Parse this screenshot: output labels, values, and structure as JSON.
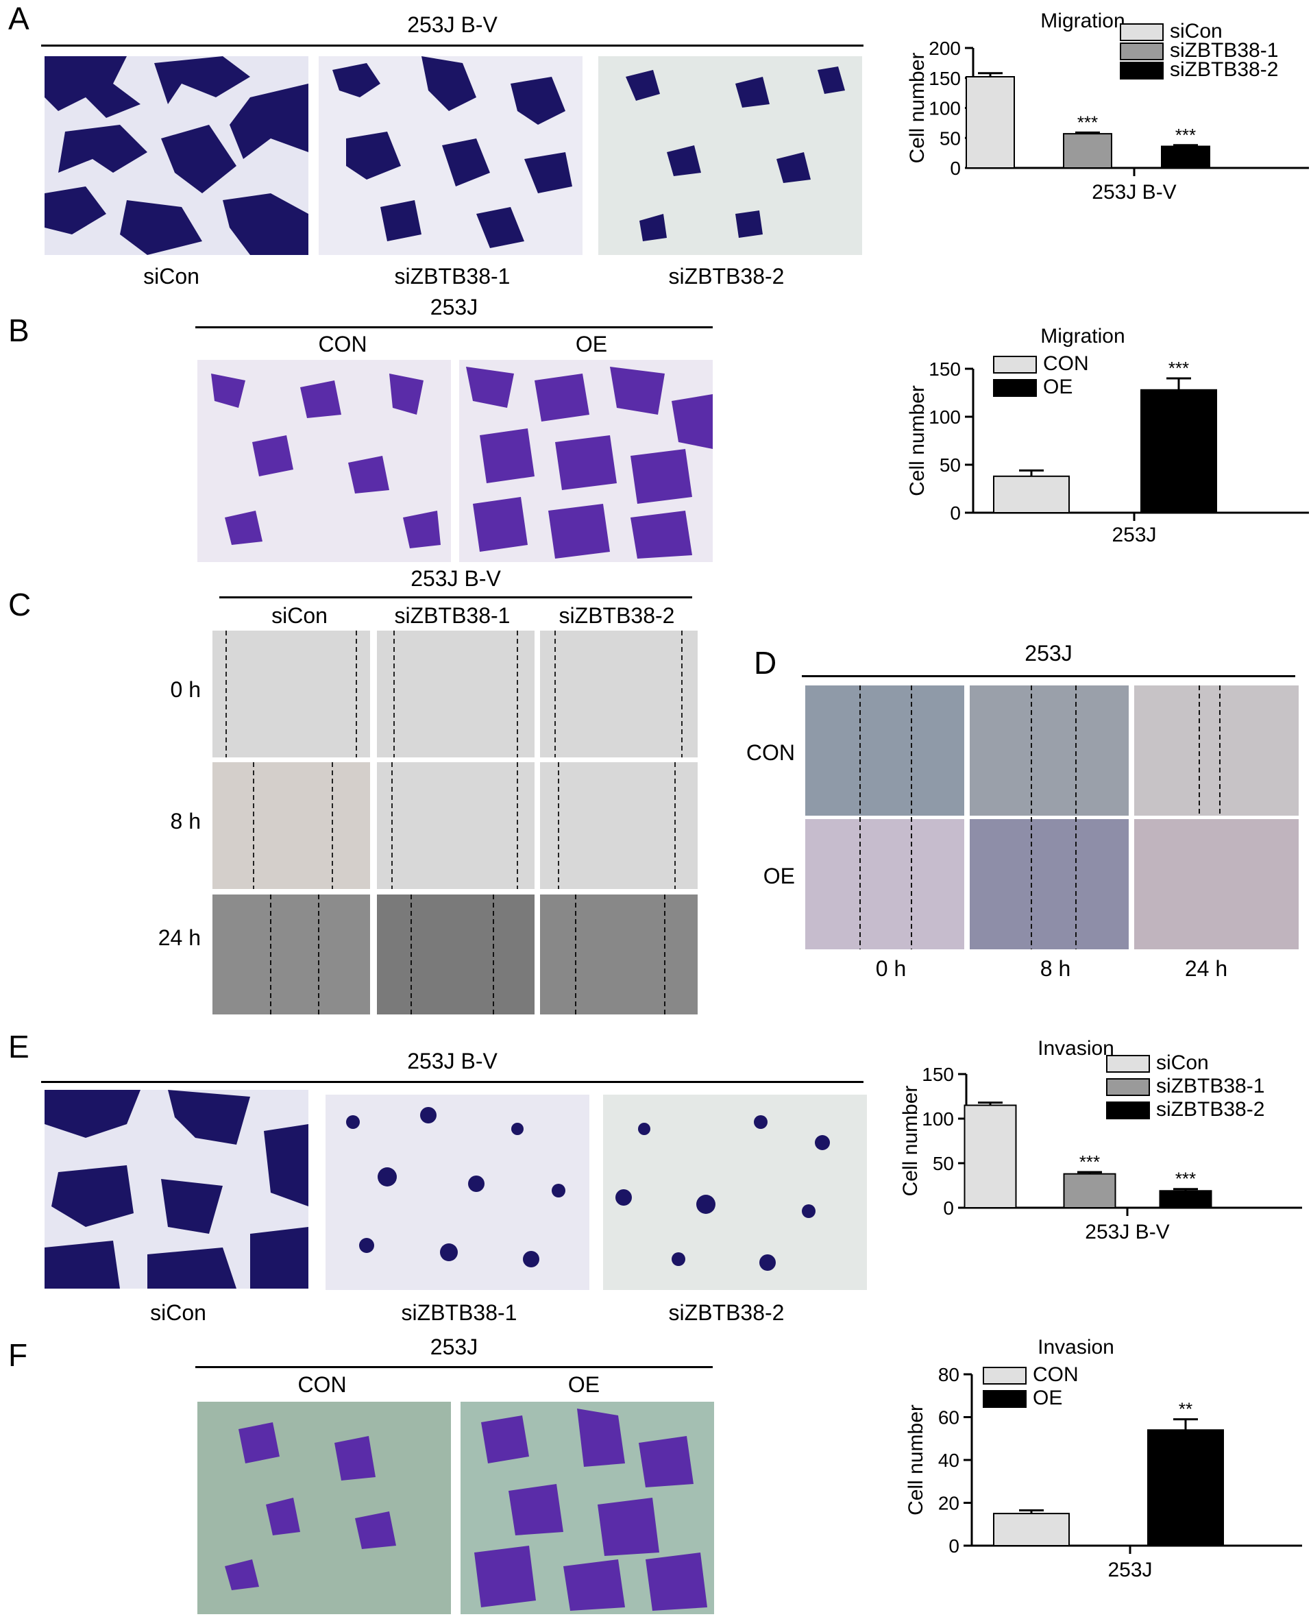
{
  "palette": {
    "siCon": "#e0e0e0",
    "siZBTB38_1": "#9a9a9a",
    "siZBTB38_2": "#000000",
    "CON": "#e0e0e0",
    "OE": "#000000",
    "stain_dark": "#1b1464",
    "stain_violet": "#5a2ca8",
    "stain_bg": "#e8e8f4",
    "stain_bg_green": "#9fb8a8",
    "scratch_light": "#cfcfcf",
    "scratch_dark": "#6e6e6e",
    "scratch_purple": "#a9a2c2"
  },
  "panels": {
    "A": {
      "label": "A",
      "group_title": "253J B-V",
      "captions": [
        "siCon",
        "siZBTB38-1",
        "siZBTB38-2"
      ]
    },
    "B": {
      "label": "B",
      "group_title": "253J",
      "captions": [
        "CON",
        "OE"
      ]
    },
    "C": {
      "label": "C",
      "group_title": "253J B-V",
      "columns": [
        "siCon",
        "siZBTB38-1",
        "siZBTB38-2"
      ],
      "rows": [
        "0 h",
        "8 h",
        "24 h"
      ]
    },
    "D": {
      "label": "D",
      "group_title": "253J",
      "rows": [
        "CON",
        "OE"
      ],
      "columns": [
        "0 h",
        "8 h",
        "24 h"
      ]
    },
    "E": {
      "label": "E",
      "group_title": "253J B-V",
      "captions": [
        "siCon",
        "siZBTB38-1",
        "siZBTB38-2"
      ]
    },
    "F": {
      "label": "F",
      "group_title": "253J",
      "captions": [
        "CON",
        "OE"
      ]
    }
  },
  "chart_data": [
    {
      "id": "A",
      "type": "bar",
      "title": "Migration",
      "ylabel": "Cell number",
      "xlabel": "253J B-V",
      "ylim": [
        0,
        200
      ],
      "yticks": [
        "0",
        "50",
        "100",
        "150",
        "200"
      ],
      "legend_position": "top-right",
      "categories": [
        "siCon",
        "siZBTB38-1",
        "siZBTB38-2"
      ],
      "values": [
        152,
        57,
        36
      ],
      "errors": [
        6,
        2,
        2
      ],
      "significance": [
        "",
        "***",
        "***"
      ],
      "colors": [
        "#e0e0e0",
        "#9a9a9a",
        "#000000"
      ]
    },
    {
      "id": "B",
      "type": "bar",
      "title": "Migration",
      "ylabel": "Cell number",
      "xlabel": "253J",
      "ylim": [
        0,
        150
      ],
      "yticks": [
        "0",
        "50",
        "100",
        "150"
      ],
      "legend_position": "top-left",
      "categories": [
        "CON",
        "OE"
      ],
      "values": [
        38,
        128
      ],
      "errors": [
        6,
        12
      ],
      "significance": [
        "",
        "***"
      ],
      "colors": [
        "#e0e0e0",
        "#000000"
      ]
    },
    {
      "id": "E",
      "type": "bar",
      "title": "Invasion",
      "ylabel": "Cell number",
      "xlabel": "253J B-V",
      "ylim": [
        0,
        150
      ],
      "yticks": [
        "0",
        "50",
        "100",
        "150"
      ],
      "legend_position": "top-right",
      "categories": [
        "siCon",
        "siZBTB38-1",
        "siZBTB38-2"
      ],
      "values": [
        115,
        38,
        19
      ],
      "errors": [
        3,
        2,
        2
      ],
      "significance": [
        "",
        "***",
        "***"
      ],
      "colors": [
        "#e0e0e0",
        "#9a9a9a",
        "#000000"
      ]
    },
    {
      "id": "F",
      "type": "bar",
      "title": "Invasion",
      "ylabel": "Cell number",
      "xlabel": "253J",
      "ylim": [
        0,
        80
      ],
      "yticks": [
        "0",
        "20",
        "40",
        "60",
        "80"
      ],
      "legend_position": "top-left",
      "categories": [
        "CON",
        "OE"
      ],
      "values": [
        15,
        54
      ],
      "errors": [
        1.5,
        5
      ],
      "significance": [
        "",
        "**"
      ],
      "colors": [
        "#e0e0e0",
        "#000000"
      ]
    }
  ]
}
